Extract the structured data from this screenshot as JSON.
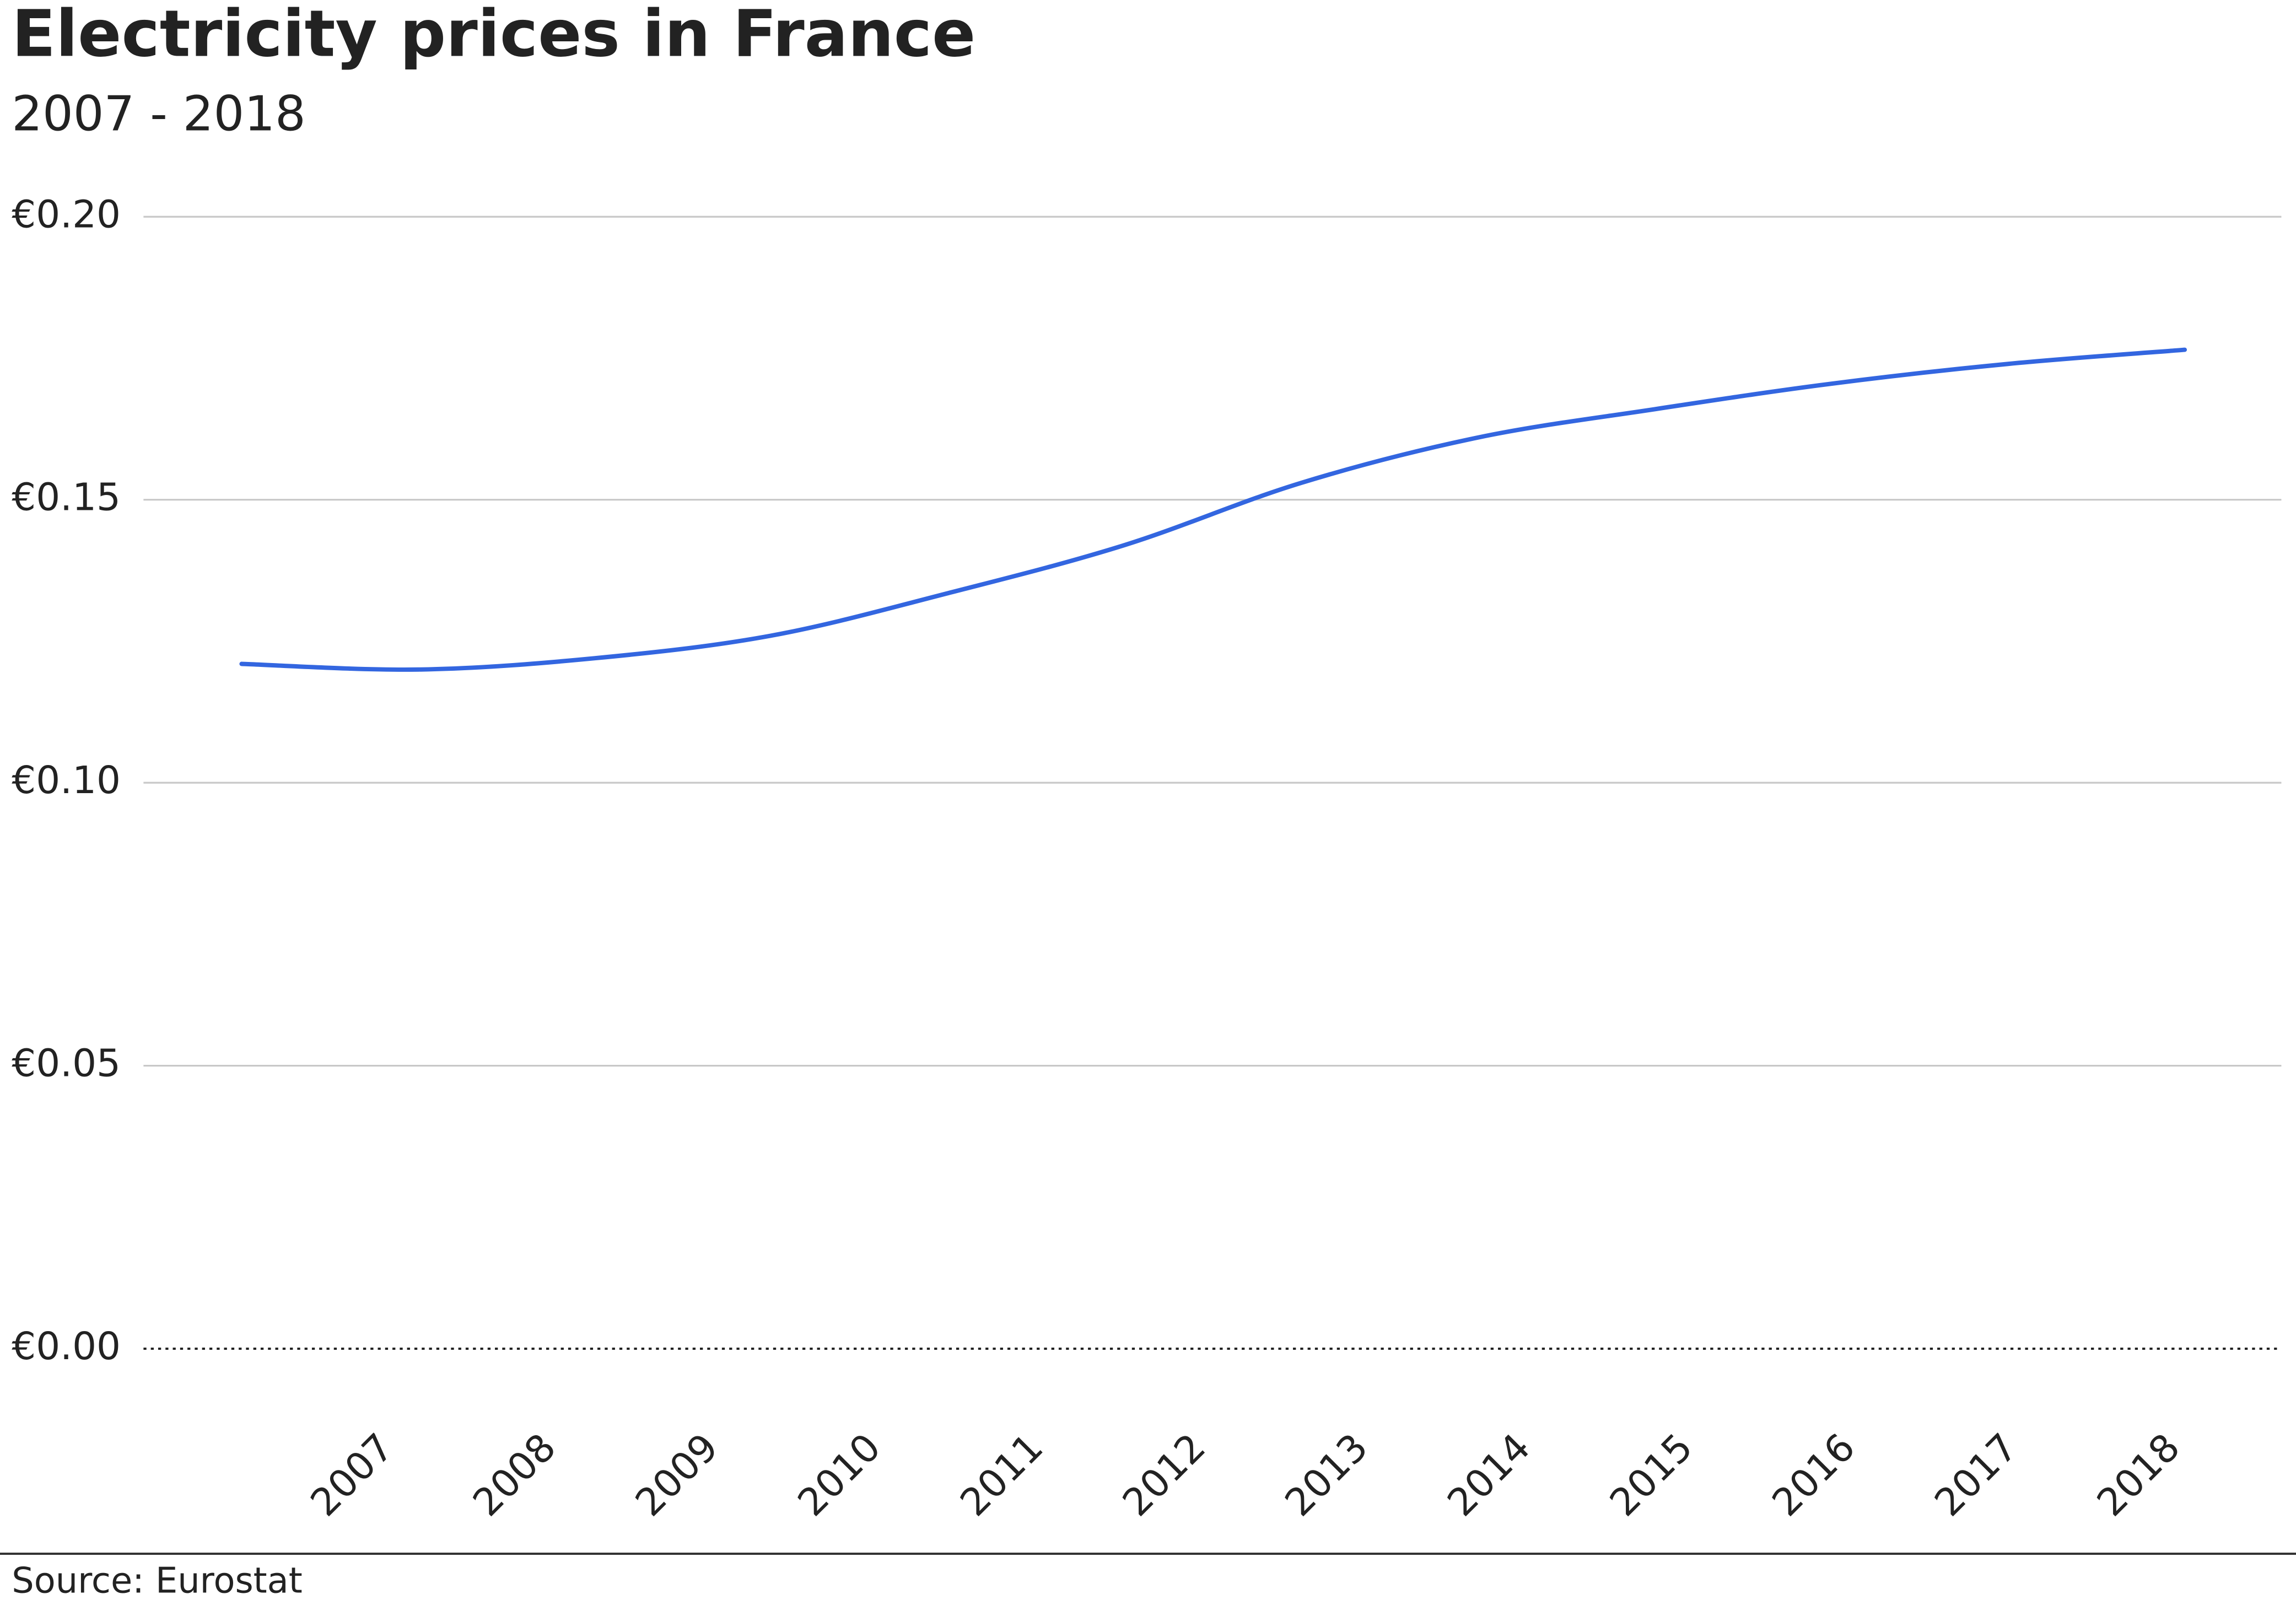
{
  "chart_data": {
    "type": "line",
    "title": "Electricity prices in France",
    "subtitle": "2007 - 2018",
    "source": "Source: Eurostat",
    "categories": [
      "2007",
      "2008",
      "2009",
      "2010",
      "2011",
      "2012",
      "2013",
      "2014",
      "2015",
      "2016",
      "2017",
      "2018"
    ],
    "series": [
      {
        "name": "Electricity price",
        "color": "#3366e0",
        "values": [
          0.121,
          0.12,
          0.122,
          0.126,
          0.1335,
          0.142,
          0.153,
          0.161,
          0.166,
          0.1705,
          0.174,
          0.1765
        ]
      }
    ],
    "ylim": [
      0,
      0.2
    ],
    "yticks": [
      {
        "value": 0,
        "label": "€0.00"
      },
      {
        "value": 0.05,
        "label": "€0.05"
      },
      {
        "value": 0.1,
        "label": "€0.10"
      },
      {
        "value": 0.15,
        "label": "€0.15"
      },
      {
        "value": 0.2,
        "label": "€0.20"
      }
    ],
    "grid": true
  }
}
